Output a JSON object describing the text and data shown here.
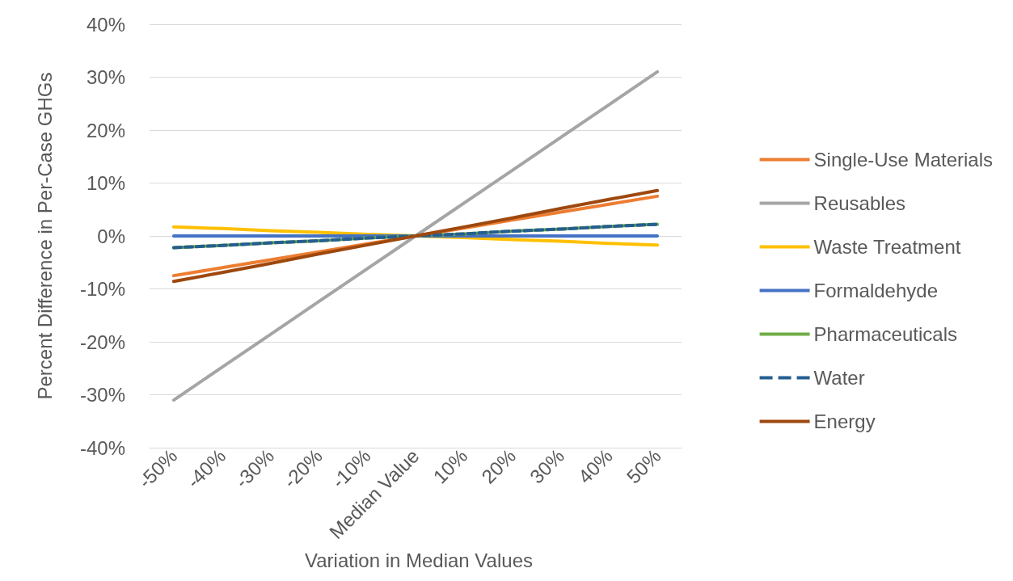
{
  "chart_data": {
    "type": "line",
    "xlabel": "Variation in Median Values",
    "ylabel": "Percent Difference in Per-Case GHGs",
    "categories": [
      "-50%",
      "-40%",
      "-30%",
      "-20%",
      "-10%",
      "Median Value",
      "10%",
      "20%",
      "30%",
      "40%",
      "50%"
    ],
    "series": [
      {
        "name": "Single-Use Materials",
        "color": "#ed7d31",
        "values": [
          -7.5,
          -6,
          -4.5,
          -3,
          -1.5,
          0,
          1.5,
          3,
          4.5,
          6,
          7.5
        ]
      },
      {
        "name": "Reusables",
        "color": "#a5a5a5",
        "values": [
          -31,
          -24.8,
          -18.6,
          -12.4,
          -6.2,
          0,
          6.2,
          12.4,
          18.6,
          24.8,
          31
        ]
      },
      {
        "name": "Waste Treatment",
        "color": "#ffc000",
        "values": [
          1.7,
          1.4,
          1.0,
          0.7,
          0.3,
          0,
          -0.3,
          -0.7,
          -1.0,
          -1.4,
          -1.7
        ]
      },
      {
        "name": "Formaldehyde",
        "color": "#4472c4",
        "values": [
          0,
          0,
          0,
          0,
          0,
          0,
          0,
          0,
          0,
          0,
          0
        ]
      },
      {
        "name": "Pharmaceuticals",
        "color": "#70ad47",
        "values": [
          -2.2,
          -1.8,
          -1.3,
          -0.9,
          -0.4,
          0,
          0.4,
          0.9,
          1.3,
          1.8,
          2.2
        ]
      },
      {
        "name": "Water",
        "color": "#255e91",
        "line_style": "dashed",
        "values": [
          -2.2,
          -1.8,
          -1.3,
          -0.9,
          -0.4,
          0,
          0.4,
          0.9,
          1.3,
          1.8,
          2.2
        ]
      },
      {
        "name": "Energy",
        "color": "#9e480e",
        "values": [
          -8.6,
          -6.9,
          -5.2,
          -3.4,
          -1.7,
          0,
          1.7,
          3.4,
          5.2,
          6.9,
          8.6
        ]
      }
    ],
    "ylim": [
      -40,
      40
    ],
    "yticks": [
      {
        "value": -40,
        "label": "-40%"
      },
      {
        "value": -30,
        "label": "-30%"
      },
      {
        "value": -20,
        "label": "-20%"
      },
      {
        "value": -10,
        "label": "-10%"
      },
      {
        "value": 0,
        "label": "0%"
      },
      {
        "value": 10,
        "label": "10%"
      },
      {
        "value": 20,
        "label": "20%"
      },
      {
        "value": 30,
        "label": "30%"
      },
      {
        "value": 40,
        "label": "40%"
      }
    ],
    "grid": "y",
    "legend": "right",
    "marker": "none",
    "line_style": "solid"
  }
}
